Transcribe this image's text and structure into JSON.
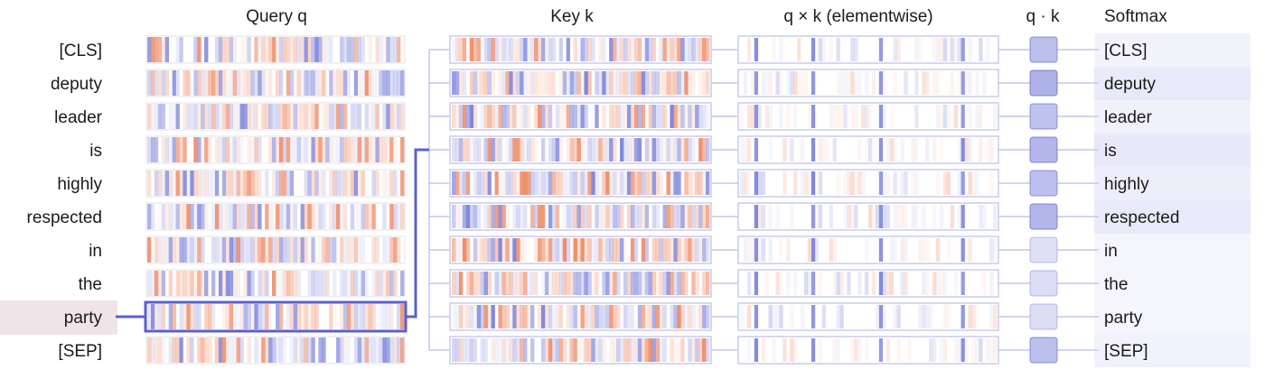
{
  "headers": {
    "query": "Query q",
    "key": "Key k",
    "product": "q × k (elementwise)",
    "dot": "q · k",
    "softmax": "Softmax"
  },
  "tokens": [
    "[CLS]",
    "deputy",
    "leader",
    "is",
    "highly",
    "respected",
    "in",
    "the",
    "party",
    "[SEP]"
  ],
  "selected_query_index": 8,
  "softmax_weights": [
    0.05,
    0.13,
    0.07,
    0.14,
    0.09,
    0.13,
    0.03,
    0.03,
    0.03,
    0.06
  ],
  "dot_product_levels": [
    0.62,
    0.78,
    0.58,
    0.72,
    0.6,
    0.72,
    0.18,
    0.22,
    0.22,
    0.6
  ],
  "colors": {
    "positive": "#ee7a4f",
    "negative": "#6b73d6",
    "accent": "#5a5fcf",
    "cell_border": "#e3e3ea",
    "key_border": "#c9cbef",
    "connector": "#c4c7ea",
    "row_highlight": "#f1e4e8",
    "softmax_fill": "#5a5fcf"
  }
}
